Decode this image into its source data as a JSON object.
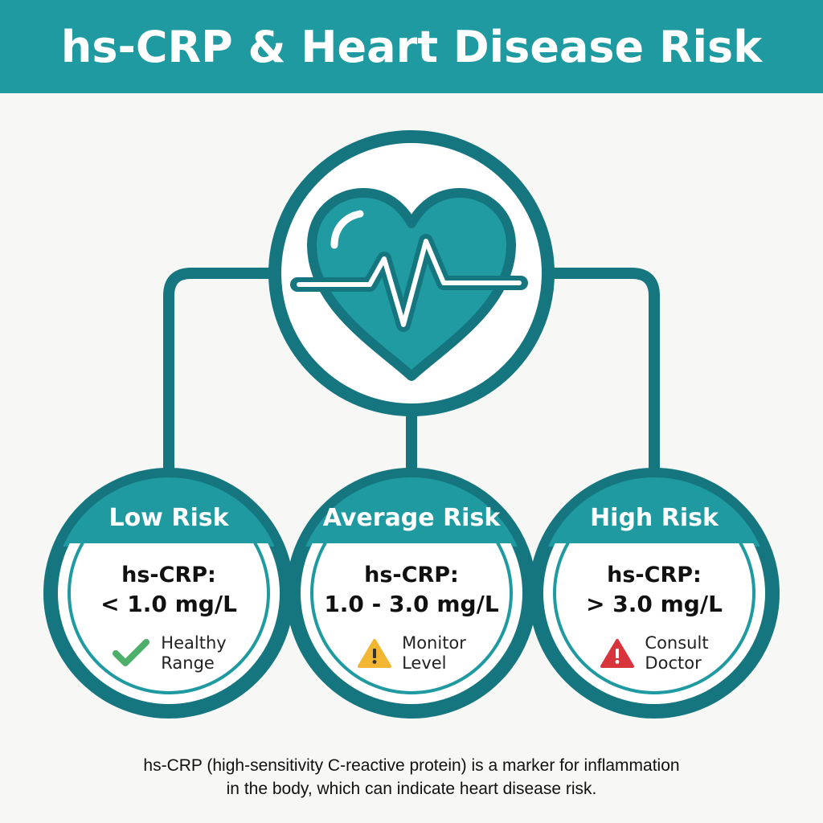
{
  "header": {
    "title": "hs-CRP & Heart Disease Risk"
  },
  "cards": [
    {
      "title": "Low Risk",
      "label": "hs-CRP:",
      "range": "< 1.0 mg/L",
      "status_line1": "Healthy",
      "status_line2": "Range",
      "icon": "check-icon",
      "icon_color": "#4caf6a"
    },
    {
      "title": "Average Risk",
      "label": "hs-CRP:",
      "range": "1.0 - 3.0 mg/L",
      "status_line1": "Monitor",
      "status_line2": "Level",
      "icon": "warning-icon",
      "icon_color": "#f2b632"
    },
    {
      "title": "High Risk",
      "label": "hs-CRP:",
      "range": "> 3.0 mg/L",
      "status_line1": "Consult",
      "status_line2": "Doctor",
      "icon": "alert-icon",
      "icon_color": "#d8343b"
    }
  ],
  "footer": {
    "line1": "hs-CRP (high-sensitivity C-reactive protein) is a marker for inflammation",
    "line2": "in the body, which can indicate heart disease risk."
  },
  "colors": {
    "teal": "#1e9aa0",
    "dark_teal": "#16767f",
    "background": "#f7f7f6"
  }
}
